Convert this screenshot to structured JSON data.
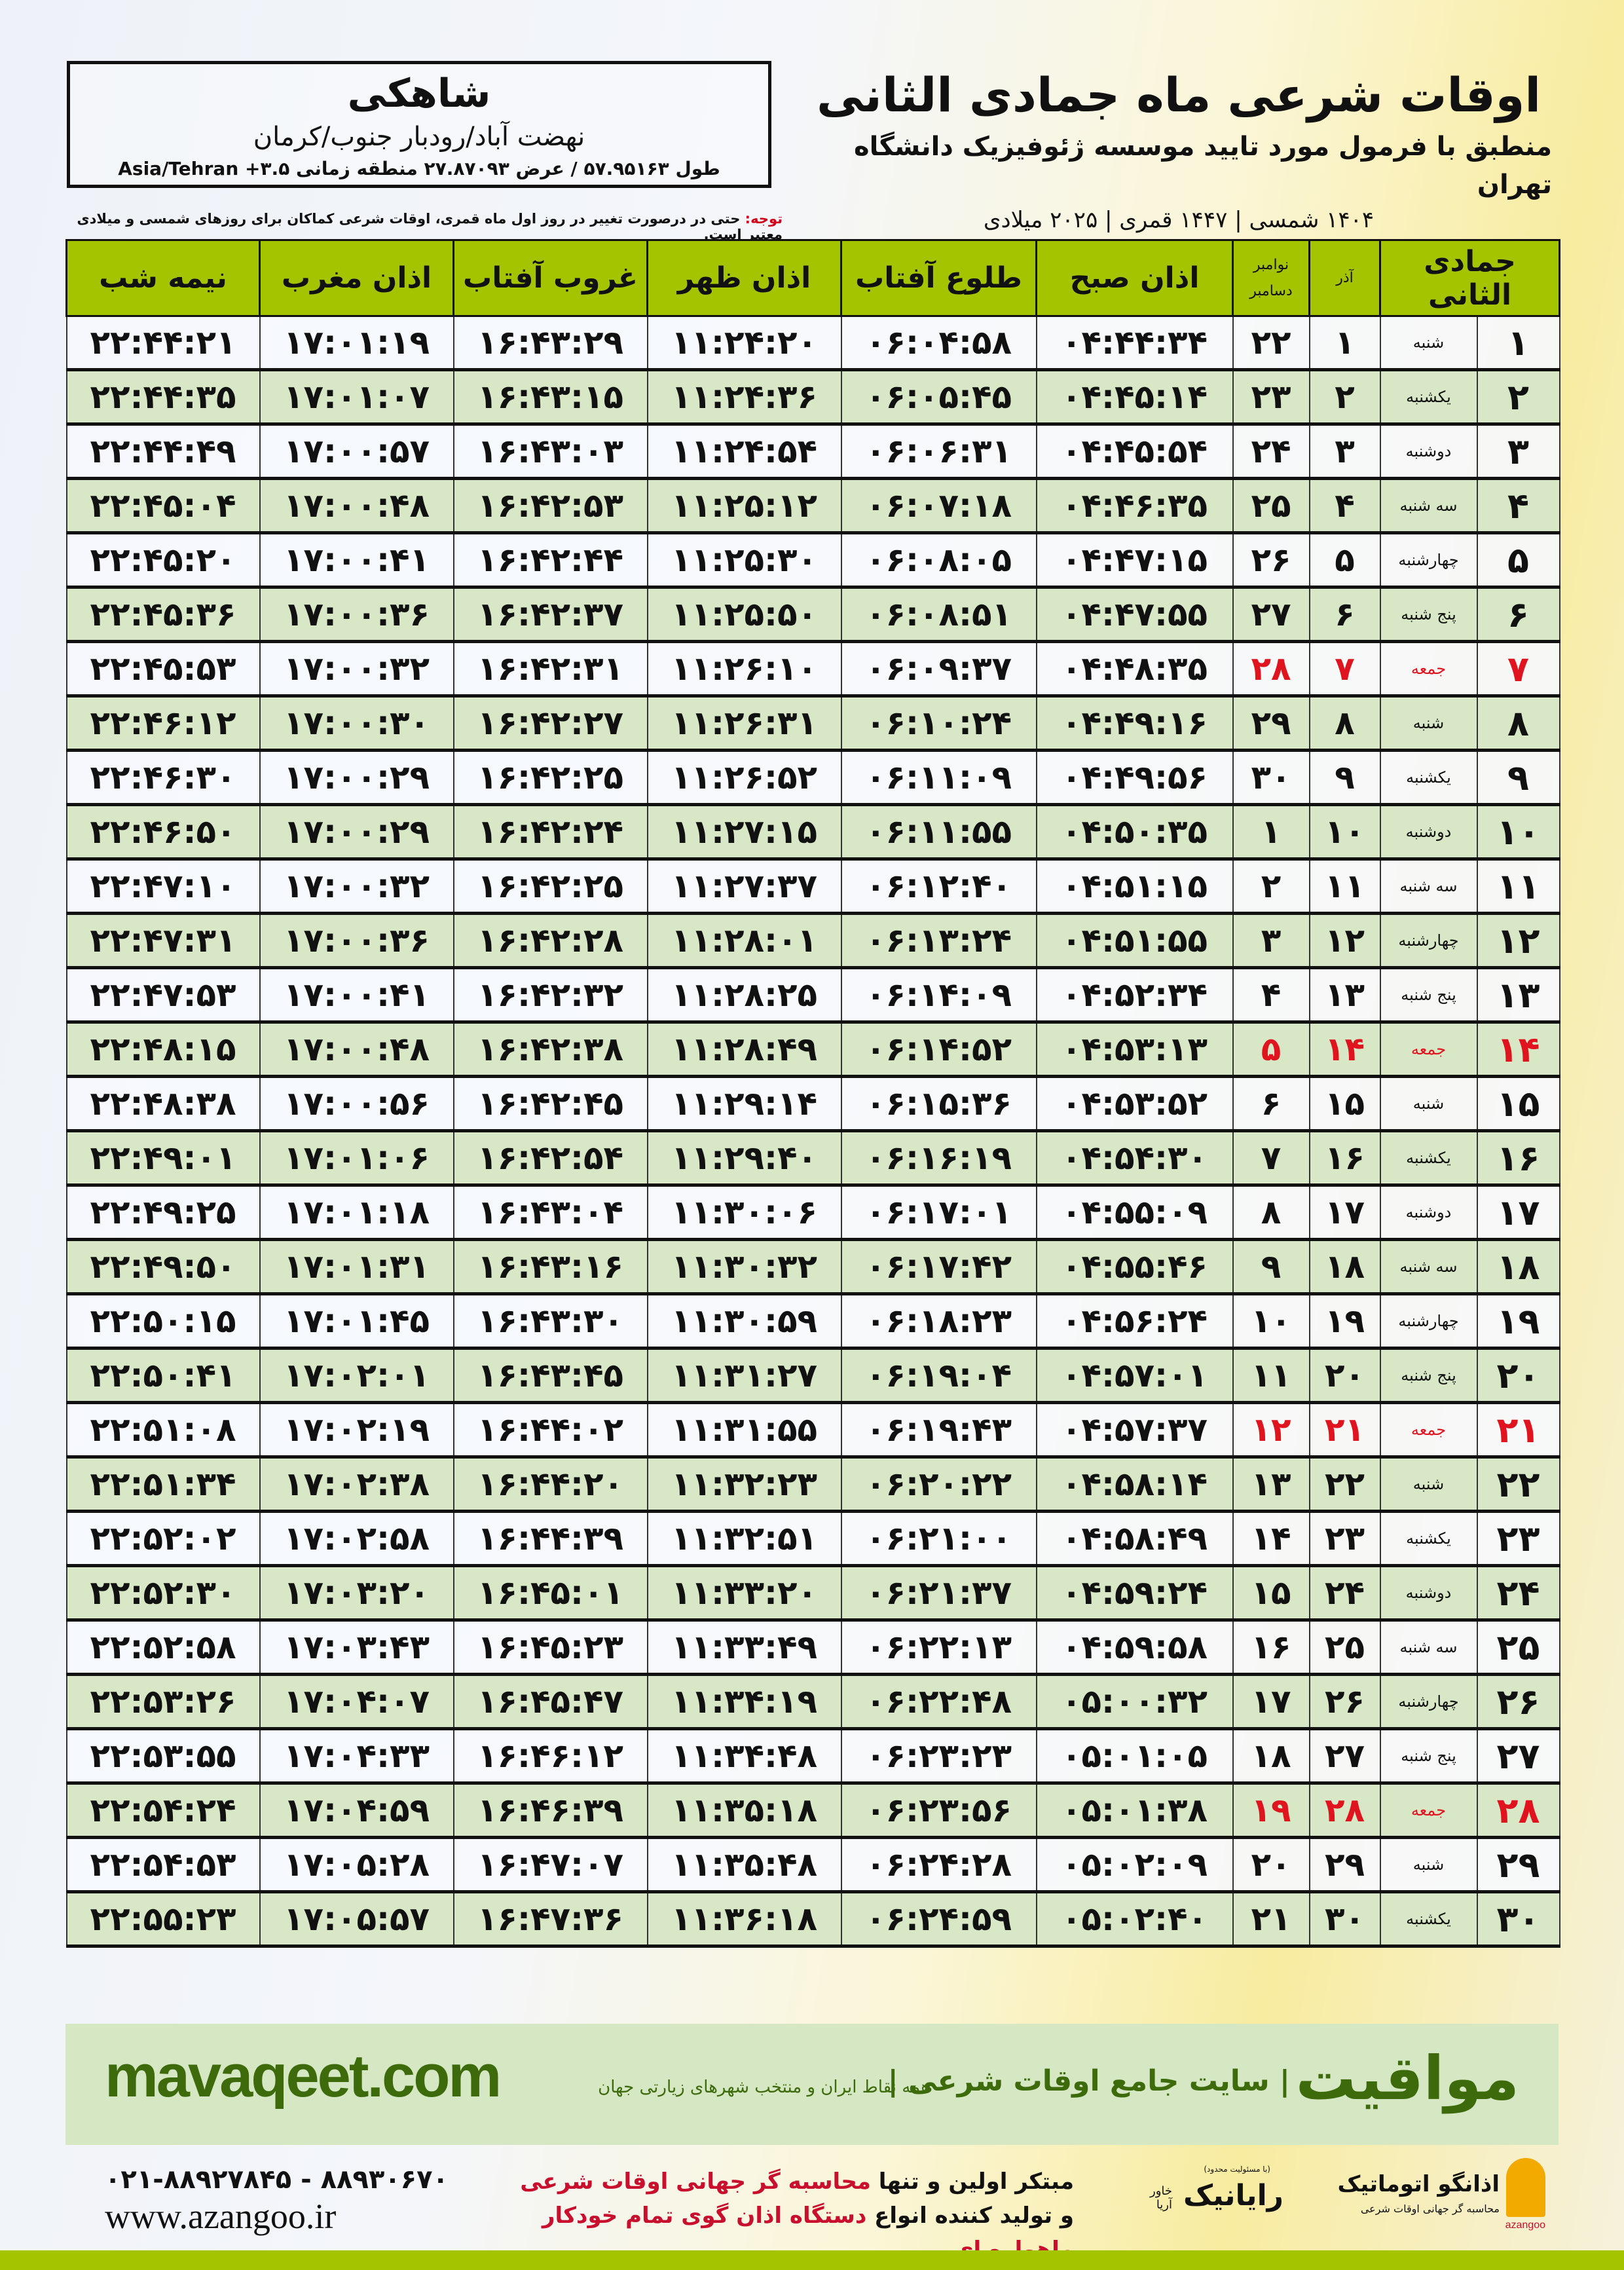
{
  "location": {
    "name": "شاهکی",
    "path": "نهضت آباد/رودبار جنوب/کرمان",
    "coords": "طول ۵۷.۹۵۱۶۳ / عرض ۲۷.۸۷۰۹۳ منطقه زمانی ۳.۵+ Asia/Tehran"
  },
  "header": {
    "title": "اوقات شرعی ماه جمادی الثانی",
    "subtitle": "منطبق با فرمول مورد تایید موسسه ژئوفیزیک دانشگاه تهران",
    "dates": "۱۴۰۴ شمسی | ۱۴۴۷ قمری | ۲۰۲۵ میلادی"
  },
  "note": {
    "label": "توجه:",
    "text": " حتی در درصورت تغییر در روز اول ماه قمری، اوقات شرعی کماکان برای روزهای شمسی و میلادی معتبر است."
  },
  "colors": {
    "header_green": "#a5c400",
    "row_green": "#d8e8c6",
    "friday_red": "#e0141e",
    "brand_green": "#3d6b0c"
  },
  "table": {
    "columns": {
      "hijri": "جمادی الثانی",
      "azar": "آذر",
      "greg_top": "نوامبر",
      "greg_bottom": "دسامبر",
      "sobh": "اذان صبح",
      "toloo": "طلوع آفتاب",
      "zohr": "اذان ظهر",
      "ghoroob": "غروب آفتاب",
      "maghreb": "اذان مغرب",
      "nimeh": "نیمه شب"
    },
    "rows": [
      {
        "h": "۱",
        "wd": "شنبه",
        "az": "۱",
        "g": "۲۲",
        "sobh": "۰۴:۴۴:۳۴",
        "toloo": "۰۶:۰۴:۵۸",
        "zohr": "۱۱:۲۴:۲۰",
        "ghoroob": "۱۶:۴۳:۲۹",
        "maghreb": "۱۷:۰۱:۱۹",
        "nimeh": "۲۲:۴۴:۲۱",
        "friday": false
      },
      {
        "h": "۲",
        "wd": "یکشنبه",
        "az": "۲",
        "g": "۲۳",
        "sobh": "۰۴:۴۵:۱۴",
        "toloo": "۰۶:۰۵:۴۵",
        "zohr": "۱۱:۲۴:۳۶",
        "ghoroob": "۱۶:۴۳:۱۵",
        "maghreb": "۱۷:۰۱:۰۷",
        "nimeh": "۲۲:۴۴:۳۵",
        "friday": false
      },
      {
        "h": "۳",
        "wd": "دوشنبه",
        "az": "۳",
        "g": "۲۴",
        "sobh": "۰۴:۴۵:۵۴",
        "toloo": "۰۶:۰۶:۳۱",
        "zohr": "۱۱:۲۴:۵۴",
        "ghoroob": "۱۶:۴۳:۰۳",
        "maghreb": "۱۷:۰۰:۵۷",
        "nimeh": "۲۲:۴۴:۴۹",
        "friday": false
      },
      {
        "h": "۴",
        "wd": "سه شنبه",
        "az": "۴",
        "g": "۲۵",
        "sobh": "۰۴:۴۶:۳۵",
        "toloo": "۰۶:۰۷:۱۸",
        "zohr": "۱۱:۲۵:۱۲",
        "ghoroob": "۱۶:۴۲:۵۳",
        "maghreb": "۱۷:۰۰:۴۸",
        "nimeh": "۲۲:۴۵:۰۴",
        "friday": false
      },
      {
        "h": "۵",
        "wd": "چهارشنبه",
        "az": "۵",
        "g": "۲۶",
        "sobh": "۰۴:۴۷:۱۵",
        "toloo": "۰۶:۰۸:۰۵",
        "zohr": "۱۱:۲۵:۳۰",
        "ghoroob": "۱۶:۴۲:۴۴",
        "maghreb": "۱۷:۰۰:۴۱",
        "nimeh": "۲۲:۴۵:۲۰",
        "friday": false
      },
      {
        "h": "۶",
        "wd": "پنج شنبه",
        "az": "۶",
        "g": "۲۷",
        "sobh": "۰۴:۴۷:۵۵",
        "toloo": "۰۶:۰۸:۵۱",
        "zohr": "۱۱:۲۵:۵۰",
        "ghoroob": "۱۶:۴۲:۳۷",
        "maghreb": "۱۷:۰۰:۳۶",
        "nimeh": "۲۲:۴۵:۳۶",
        "friday": false
      },
      {
        "h": "۷",
        "wd": "جمعه",
        "az": "۷",
        "g": "۲۸",
        "sobh": "۰۴:۴۸:۳۵",
        "toloo": "۰۶:۰۹:۳۷",
        "zohr": "۱۱:۲۶:۱۰",
        "ghoroob": "۱۶:۴۲:۳۱",
        "maghreb": "۱۷:۰۰:۳۲",
        "nimeh": "۲۲:۴۵:۵۳",
        "friday": true
      },
      {
        "h": "۸",
        "wd": "شنبه",
        "az": "۸",
        "g": "۲۹",
        "sobh": "۰۴:۴۹:۱۶",
        "toloo": "۰۶:۱۰:۲۴",
        "zohr": "۱۱:۲۶:۳۱",
        "ghoroob": "۱۶:۴۲:۲۷",
        "maghreb": "۱۷:۰۰:۳۰",
        "nimeh": "۲۲:۴۶:۱۲",
        "friday": false
      },
      {
        "h": "۹",
        "wd": "یکشنبه",
        "az": "۹",
        "g": "۳۰",
        "sobh": "۰۴:۴۹:۵۶",
        "toloo": "۰۶:۱۱:۰۹",
        "zohr": "۱۱:۲۶:۵۲",
        "ghoroob": "۱۶:۴۲:۲۵",
        "maghreb": "۱۷:۰۰:۲۹",
        "nimeh": "۲۲:۴۶:۳۰",
        "friday": false
      },
      {
        "h": "۱۰",
        "wd": "دوشنبه",
        "az": "۱۰",
        "g": "۱",
        "sobh": "۰۴:۵۰:۳۵",
        "toloo": "۰۶:۱۱:۵۵",
        "zohr": "۱۱:۲۷:۱۵",
        "ghoroob": "۱۶:۴۲:۲۴",
        "maghreb": "۱۷:۰۰:۲۹",
        "nimeh": "۲۲:۴۶:۵۰",
        "friday": false
      },
      {
        "h": "۱۱",
        "wd": "سه شنبه",
        "az": "۱۱",
        "g": "۲",
        "sobh": "۰۴:۵۱:۱۵",
        "toloo": "۰۶:۱۲:۴۰",
        "zohr": "۱۱:۲۷:۳۷",
        "ghoroob": "۱۶:۴۲:۲۵",
        "maghreb": "۱۷:۰۰:۳۲",
        "nimeh": "۲۲:۴۷:۱۰",
        "friday": false
      },
      {
        "h": "۱۲",
        "wd": "چهارشنبه",
        "az": "۱۲",
        "g": "۳",
        "sobh": "۰۴:۵۱:۵۵",
        "toloo": "۰۶:۱۳:۲۴",
        "zohr": "۱۱:۲۸:۰۱",
        "ghoroob": "۱۶:۴۲:۲۸",
        "maghreb": "۱۷:۰۰:۳۶",
        "nimeh": "۲۲:۴۷:۳۱",
        "friday": false
      },
      {
        "h": "۱۳",
        "wd": "پنج شنبه",
        "az": "۱۳",
        "g": "۴",
        "sobh": "۰۴:۵۲:۳۴",
        "toloo": "۰۶:۱۴:۰۹",
        "zohr": "۱۱:۲۸:۲۵",
        "ghoroob": "۱۶:۴۲:۳۲",
        "maghreb": "۱۷:۰۰:۴۱",
        "nimeh": "۲۲:۴۷:۵۳",
        "friday": false
      },
      {
        "h": "۱۴",
        "wd": "جمعه",
        "az": "۱۴",
        "g": "۵",
        "sobh": "۰۴:۵۳:۱۳",
        "toloo": "۰۶:۱۴:۵۲",
        "zohr": "۱۱:۲۸:۴۹",
        "ghoroob": "۱۶:۴۲:۳۸",
        "maghreb": "۱۷:۰۰:۴۸",
        "nimeh": "۲۲:۴۸:۱۵",
        "friday": true
      },
      {
        "h": "۱۵",
        "wd": "شنبه",
        "az": "۱۵",
        "g": "۶",
        "sobh": "۰۴:۵۳:۵۲",
        "toloo": "۰۶:۱۵:۳۶",
        "zohr": "۱۱:۲۹:۱۴",
        "ghoroob": "۱۶:۴۲:۴۵",
        "maghreb": "۱۷:۰۰:۵۶",
        "nimeh": "۲۲:۴۸:۳۸",
        "friday": false
      },
      {
        "h": "۱۶",
        "wd": "یکشنبه",
        "az": "۱۶",
        "g": "۷",
        "sobh": "۰۴:۵۴:۳۰",
        "toloo": "۰۶:۱۶:۱۹",
        "zohr": "۱۱:۲۹:۴۰",
        "ghoroob": "۱۶:۴۲:۵۴",
        "maghreb": "۱۷:۰۱:۰۶",
        "nimeh": "۲۲:۴۹:۰۱",
        "friday": false
      },
      {
        "h": "۱۷",
        "wd": "دوشنبه",
        "az": "۱۷",
        "g": "۸",
        "sobh": "۰۴:۵۵:۰۹",
        "toloo": "۰۶:۱۷:۰۱",
        "zohr": "۱۱:۳۰:۰۶",
        "ghoroob": "۱۶:۴۳:۰۴",
        "maghreb": "۱۷:۰۱:۱۸",
        "nimeh": "۲۲:۴۹:۲۵",
        "friday": false
      },
      {
        "h": "۱۸",
        "wd": "سه شنبه",
        "az": "۱۸",
        "g": "۹",
        "sobh": "۰۴:۵۵:۴۶",
        "toloo": "۰۶:۱۷:۴۲",
        "zohr": "۱۱:۳۰:۳۲",
        "ghoroob": "۱۶:۴۳:۱۶",
        "maghreb": "۱۷:۰۱:۳۱",
        "nimeh": "۲۲:۴۹:۵۰",
        "friday": false
      },
      {
        "h": "۱۹",
        "wd": "چهارشنبه",
        "az": "۱۹",
        "g": "۱۰",
        "sobh": "۰۴:۵۶:۲۴",
        "toloo": "۰۶:۱۸:۲۳",
        "zohr": "۱۱:۳۰:۵۹",
        "ghoroob": "۱۶:۴۳:۳۰",
        "maghreb": "۱۷:۰۱:۴۵",
        "nimeh": "۲۲:۵۰:۱۵",
        "friday": false
      },
      {
        "h": "۲۰",
        "wd": "پنج شنبه",
        "az": "۲۰",
        "g": "۱۱",
        "sobh": "۰۴:۵۷:۰۱",
        "toloo": "۰۶:۱۹:۰۴",
        "zohr": "۱۱:۳۱:۲۷",
        "ghoroob": "۱۶:۴۳:۴۵",
        "maghreb": "۱۷:۰۲:۰۱",
        "nimeh": "۲۲:۵۰:۴۱",
        "friday": false
      },
      {
        "h": "۲۱",
        "wd": "جمعه",
        "az": "۲۱",
        "g": "۱۲",
        "sobh": "۰۴:۵۷:۳۷",
        "toloo": "۰۶:۱۹:۴۳",
        "zohr": "۱۱:۳۱:۵۵",
        "ghoroob": "۱۶:۴۴:۰۲",
        "maghreb": "۱۷:۰۲:۱۹",
        "nimeh": "۲۲:۵۱:۰۸",
        "friday": true
      },
      {
        "h": "۲۲",
        "wd": "شنبه",
        "az": "۲۲",
        "g": "۱۳",
        "sobh": "۰۴:۵۸:۱۴",
        "toloo": "۰۶:۲۰:۲۲",
        "zohr": "۱۱:۳۲:۲۳",
        "ghoroob": "۱۶:۴۴:۲۰",
        "maghreb": "۱۷:۰۲:۳۸",
        "nimeh": "۲۲:۵۱:۳۴",
        "friday": false
      },
      {
        "h": "۲۳",
        "wd": "یکشنبه",
        "az": "۲۳",
        "g": "۱۴",
        "sobh": "۰۴:۵۸:۴۹",
        "toloo": "۰۶:۲۱:۰۰",
        "zohr": "۱۱:۳۲:۵۱",
        "ghoroob": "۱۶:۴۴:۳۹",
        "maghreb": "۱۷:۰۲:۵۸",
        "nimeh": "۲۲:۵۲:۰۲",
        "friday": false
      },
      {
        "h": "۲۴",
        "wd": "دوشنبه",
        "az": "۲۴",
        "g": "۱۵",
        "sobh": "۰۴:۵۹:۲۴",
        "toloo": "۰۶:۲۱:۳۷",
        "zohr": "۱۱:۳۳:۲۰",
        "ghoroob": "۱۶:۴۵:۰۱",
        "maghreb": "۱۷:۰۳:۲۰",
        "nimeh": "۲۲:۵۲:۳۰",
        "friday": false
      },
      {
        "h": "۲۵",
        "wd": "سه شنبه",
        "az": "۲۵",
        "g": "۱۶",
        "sobh": "۰۴:۵۹:۵۸",
        "toloo": "۰۶:۲۲:۱۳",
        "zohr": "۱۱:۳۳:۴۹",
        "ghoroob": "۱۶:۴۵:۲۳",
        "maghreb": "۱۷:۰۳:۴۳",
        "nimeh": "۲۲:۵۲:۵۸",
        "friday": false
      },
      {
        "h": "۲۶",
        "wd": "چهارشنبه",
        "az": "۲۶",
        "g": "۱۷",
        "sobh": "۰۵:۰۰:۳۲",
        "toloo": "۰۶:۲۲:۴۸",
        "zohr": "۱۱:۳۴:۱۹",
        "ghoroob": "۱۶:۴۵:۴۷",
        "maghreb": "۱۷:۰۴:۰۷",
        "nimeh": "۲۲:۵۳:۲۶",
        "friday": false
      },
      {
        "h": "۲۷",
        "wd": "پنج شنبه",
        "az": "۲۷",
        "g": "۱۸",
        "sobh": "۰۵:۰۱:۰۵",
        "toloo": "۰۶:۲۳:۲۳",
        "zohr": "۱۱:۳۴:۴۸",
        "ghoroob": "۱۶:۴۶:۱۲",
        "maghreb": "۱۷:۰۴:۳۳",
        "nimeh": "۲۲:۵۳:۵۵",
        "friday": false
      },
      {
        "h": "۲۸",
        "wd": "جمعه",
        "az": "۲۸",
        "g": "۱۹",
        "sobh": "۰۵:۰۱:۳۸",
        "toloo": "۰۶:۲۳:۵۶",
        "zohr": "۱۱:۳۵:۱۸",
        "ghoroob": "۱۶:۴۶:۳۹",
        "maghreb": "۱۷:۰۴:۵۹",
        "nimeh": "۲۲:۵۴:۲۴",
        "friday": true
      },
      {
        "h": "۲۹",
        "wd": "شنبه",
        "az": "۲۹",
        "g": "۲۰",
        "sobh": "۰۵:۰۲:۰۹",
        "toloo": "۰۶:۲۴:۲۸",
        "zohr": "۱۱:۳۵:۴۸",
        "ghoroob": "۱۶:۴۷:۰۷",
        "maghreb": "۱۷:۰۵:۲۸",
        "nimeh": "۲۲:۵۴:۵۳",
        "friday": false
      },
      {
        "h": "۳۰",
        "wd": "یکشنبه",
        "az": "۳۰",
        "g": "۲۱",
        "sobh": "۰۵:۰۲:۴۰",
        "toloo": "۰۶:۲۴:۵۹",
        "zohr": "۱۱:۳۶:۱۸",
        "ghoroob": "۱۶:۴۷:۳۶",
        "maghreb": "۱۷:۰۵:۵۷",
        "nimeh": "۲۲:۵۵:۲۳",
        "friday": false
      }
    ]
  },
  "footer": {
    "brand": "مواقیت",
    "tagline": "| سایت جامع اوقات شرعی |",
    "tagline_sub": "همه نقاط ایران و منتخب شهرهای زیارتی جهان",
    "site": "mavaqeet.com",
    "phone": "۰۲۱-۸۸۹۲۷۸۴۵ - ۸۸۹۳۰۶۷۰",
    "web": "www.azangoo.ir",
    "promo_1a": "مبتکر اولین و تنها ",
    "promo_1b": "محاسبه گر جهانی اوقات شرعی",
    "promo_2a": "و تولید کننده انواع ",
    "promo_2b": "دستگاه اذان گوی تمام خودکار ماهواره ای",
    "logo_azangoo": "اذانگو اتوماتیک",
    "logo_azangoo_sub": "محاسبه گر جهانی اوقات شرعی",
    "logo_azangoo_latin": "azangoo",
    "logo_rayanik": "رایانیک",
    "logo_rayanik_side": "خاور آریا",
    "logo_rayanik_top": "(با مسئولیت محدود)"
  }
}
